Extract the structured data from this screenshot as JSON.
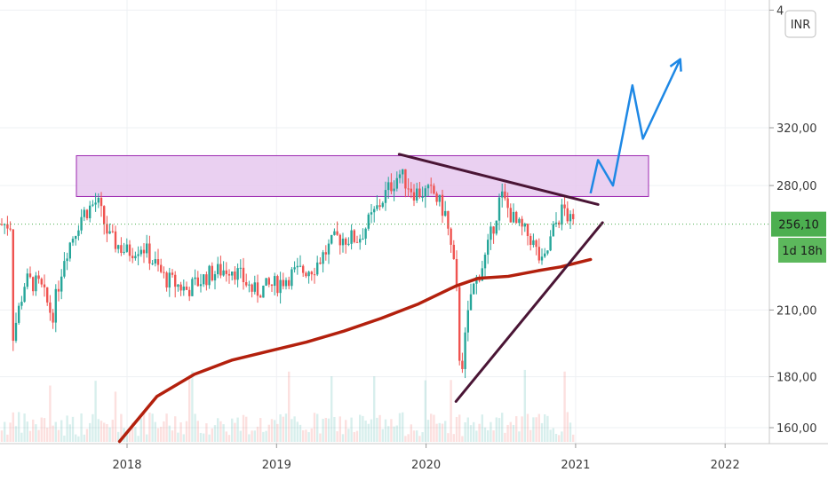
{
  "currency_badge": "INR",
  "price_label": "256,10",
  "countdown_label": "1d 18h",
  "colors": {
    "up": "#26a69a",
    "down": "#ef5350",
    "ma": "#b3200d",
    "zone_fill": "#e6c8ef",
    "zone_stroke": "#9c27b0",
    "trendline": "#4a1535",
    "projection": "#1e88e5",
    "price_badge": "#4caf50"
  },
  "chart_data": {
    "type": "candlestick",
    "x_ticks": [
      "2018",
      "2019",
      "2020",
      "2021",
      "2022"
    ],
    "y_ticks": [
      "160,00",
      "180,00",
      "210,00",
      "280,00",
      "320,00",
      "4"
    ],
    "y_scale": "log",
    "ylim": [
      155,
      420
    ],
    "last_price": 256.1,
    "resistance_zone": [
      273,
      300
    ],
    "close_series": [
      {
        "date": "2017.22",
        "close": 193
      },
      {
        "date": "2017.32",
        "close": 225
      },
      {
        "date": "2017.42",
        "close": 222
      },
      {
        "date": "2017.50",
        "close": 207
      },
      {
        "date": "2017.58",
        "close": 238
      },
      {
        "date": "2017.70",
        "close": 262
      },
      {
        "date": "2017.80",
        "close": 270
      },
      {
        "date": "2017.88",
        "close": 248
      },
      {
        "date": "2018.00",
        "close": 240
      },
      {
        "date": "2018.10",
        "close": 244
      },
      {
        "date": "2018.25",
        "close": 226
      },
      {
        "date": "2018.40",
        "close": 220
      },
      {
        "date": "2018.55",
        "close": 228
      },
      {
        "date": "2018.70",
        "close": 232
      },
      {
        "date": "2018.85",
        "close": 219
      },
      {
        "date": "2019.00",
        "close": 223
      },
      {
        "date": "2019.10",
        "close": 228
      },
      {
        "date": "2019.25",
        "close": 232
      },
      {
        "date": "2019.40",
        "close": 248
      },
      {
        "date": "2019.55",
        "close": 248
      },
      {
        "date": "2019.65",
        "close": 262
      },
      {
        "date": "2019.75",
        "close": 278
      },
      {
        "date": "2019.82",
        "close": 288
      },
      {
        "date": "2019.92",
        "close": 276
      },
      {
        "date": "2020.05",
        "close": 275
      },
      {
        "date": "2020.13",
        "close": 262
      },
      {
        "date": "2020.20",
        "close": 225
      },
      {
        "date": "2020.23",
        "close": 180
      },
      {
        "date": "2020.30",
        "close": 218
      },
      {
        "date": "2020.40",
        "close": 238
      },
      {
        "date": "2020.50",
        "close": 274
      },
      {
        "date": "2020.60",
        "close": 256
      },
      {
        "date": "2020.70",
        "close": 248
      },
      {
        "date": "2020.78",
        "close": 232
      },
      {
        "date": "2020.86",
        "close": 255
      },
      {
        "date": "2020.92",
        "close": 266
      },
      {
        "date": "2020.97",
        "close": 256
      }
    ],
    "moving_average": [
      {
        "date": "2017.95",
        "value": 155
      },
      {
        "date": "2018.20",
        "value": 172
      },
      {
        "date": "2018.45",
        "value": 181
      },
      {
        "date": "2018.70",
        "value": 187
      },
      {
        "date": "2018.95",
        "value": 191
      },
      {
        "date": "2019.20",
        "value": 195
      },
      {
        "date": "2019.45",
        "value": 200
      },
      {
        "date": "2019.70",
        "value": 206
      },
      {
        "date": "2019.95",
        "value": 213
      },
      {
        "date": "2020.20",
        "value": 222
      },
      {
        "date": "2020.35",
        "value": 226
      },
      {
        "date": "2020.55",
        "value": 227
      },
      {
        "date": "2020.75",
        "value": 230
      },
      {
        "date": "2020.90",
        "value": 232
      },
      {
        "date": "2021.10",
        "value": 236
      }
    ],
    "descending_trendline": [
      {
        "date": "2019.82",
        "value": 301
      },
      {
        "date": "2021.15",
        "value": 268
      }
    ],
    "ascending_trendline": [
      {
        "date": "2020.20",
        "value": 170
      },
      {
        "date": "2021.18",
        "value": 257
      }
    ],
    "projection_path": [
      {
        "date": "2021.10",
        "value": 275
      },
      {
        "date": "2021.15",
        "value": 297
      },
      {
        "date": "2021.25",
        "value": 280
      },
      {
        "date": "2021.38",
        "value": 353
      },
      {
        "date": "2021.45",
        "value": 312
      },
      {
        "date": "2021.70",
        "value": 375
      }
    ]
  }
}
